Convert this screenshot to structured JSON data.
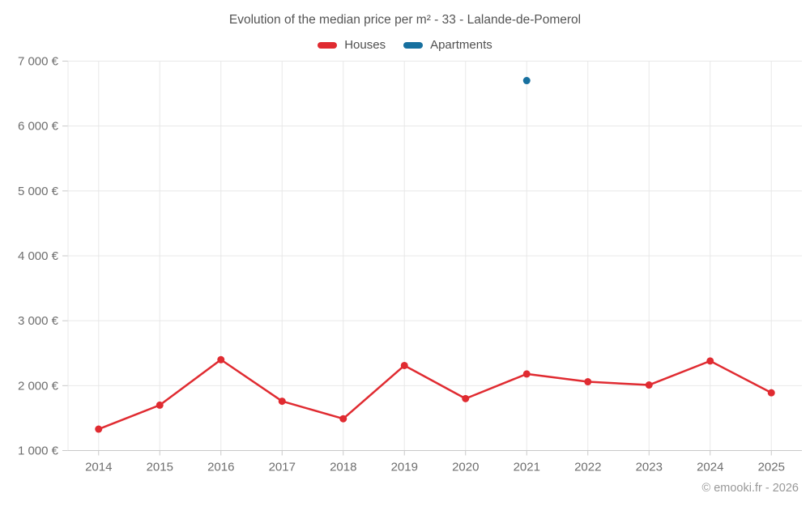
{
  "page": {
    "title": "Evolution of the median price per m² - 33 - Lalande-de-Pomerol"
  },
  "legend": {
    "items": [
      {
        "label": "Houses",
        "color": "#e02b31"
      },
      {
        "label": "Apartments",
        "color": "#17709f"
      }
    ]
  },
  "footer": {
    "copyright": "© emooki.fr - 2026"
  },
  "colors": {
    "background": "#ffffff",
    "grid": "#e8e8e8",
    "axis": "#c9c9c9",
    "tick_text": "#6e6e6e",
    "title_text": "#545454",
    "legend_text": "#4f4f4f",
    "copyright_text": "#989898",
    "houses": "#e02b31",
    "apartments": "#17709f"
  },
  "chart_data": {
    "type": "line",
    "title": "Evolution of the median price per m² - 33 - Lalande-de-Pomerol",
    "categories": [
      "2014",
      "2015",
      "2016",
      "2017",
      "2018",
      "2019",
      "2020",
      "2021",
      "2022",
      "2023",
      "2024",
      "2025"
    ],
    "series": [
      {
        "name": "Houses",
        "color": "#e02b31",
        "marker": "circle",
        "values": [
          1330,
          1700,
          2400,
          1760,
          1490,
          2310,
          1800,
          2180,
          2060,
          2010,
          2380,
          1890
        ]
      },
      {
        "name": "Apartments",
        "color": "#17709f",
        "marker": "circle",
        "values": [
          null,
          null,
          null,
          null,
          null,
          null,
          null,
          6700,
          null,
          null,
          null,
          null
        ]
      }
    ],
    "xlabel": "",
    "ylabel": "",
    "ylim": [
      1000,
      7000
    ],
    "ytick_step": 1000,
    "ytick_suffix": " €",
    "grid": true,
    "legend_position": "top",
    "annotation": "© emooki.fr - 2026"
  }
}
